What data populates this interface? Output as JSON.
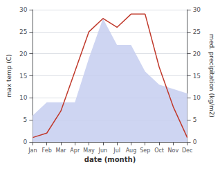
{
  "chart_data": {
    "type": "line",
    "categories": [
      "Jan",
      "Feb",
      "Mar",
      "Apr",
      "May",
      "Jun",
      "Jul",
      "Aug",
      "Sep",
      "Oct",
      "Nov",
      "Dec"
    ],
    "series": [
      {
        "type": "area",
        "color": "#c5cef0",
        "values": [
          6,
          9,
          9,
          9,
          19,
          28,
          22,
          22,
          16,
          13,
          12,
          11
        ]
      },
      {
        "type": "line",
        "color": "#c0392b",
        "values": [
          1,
          2,
          7,
          16,
          25,
          28,
          26,
          29,
          29,
          17,
          8,
          1
        ]
      }
    ],
    "xlabel": "date (month)",
    "ylabel": "max temp (C)",
    "y2label": "med. precipitation (kg/m2)",
    "ylim": [
      0,
      30
    ],
    "yticks": [
      0,
      5,
      10,
      15,
      20,
      25,
      30
    ],
    "y2lim": [
      0,
      30
    ],
    "y2ticks": [
      0,
      5,
      10,
      15,
      20,
      25,
      30
    ],
    "grid": true
  }
}
